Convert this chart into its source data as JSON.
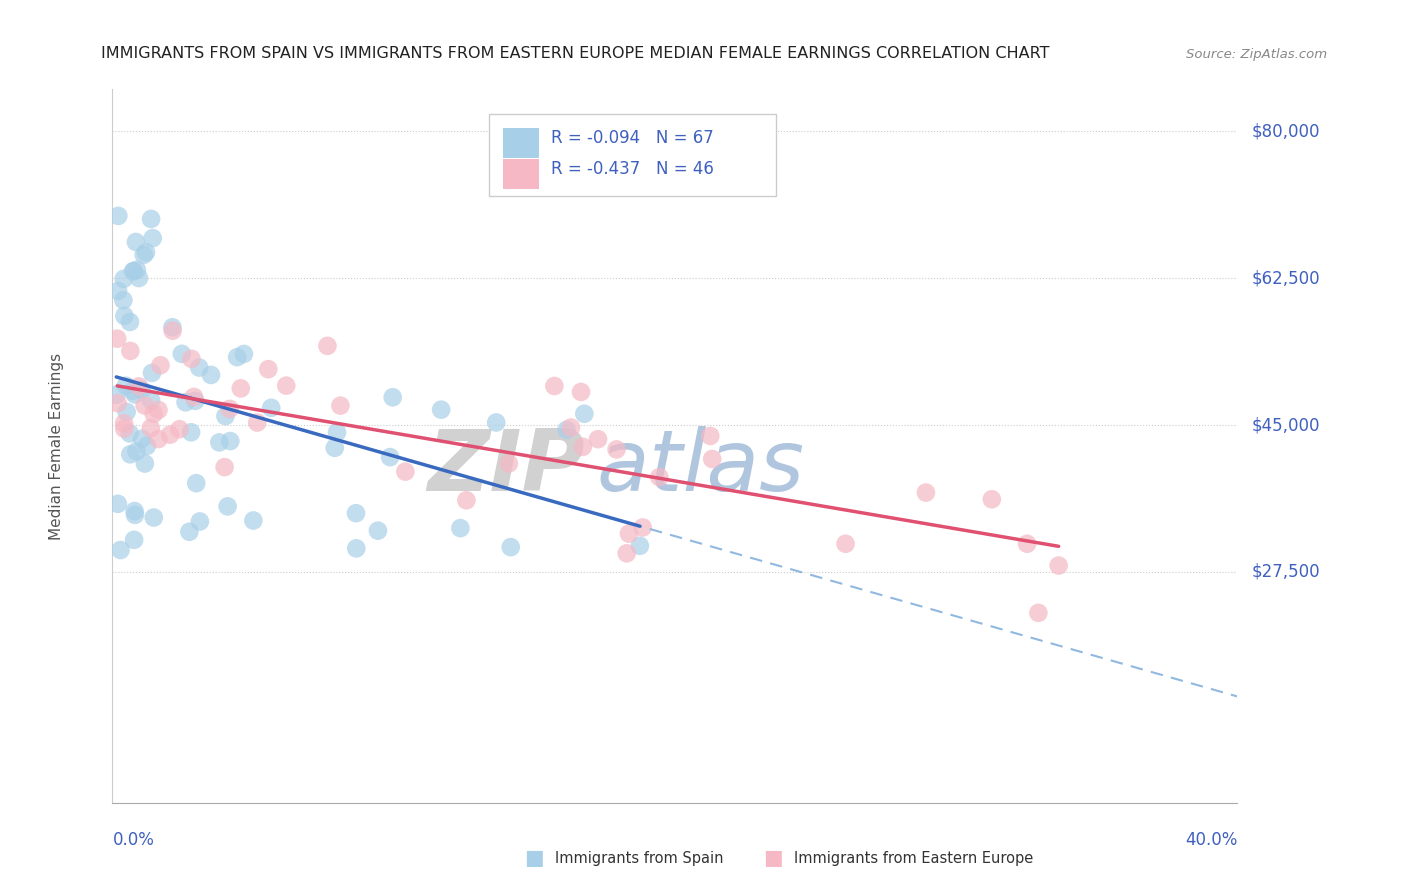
{
  "title": "IMMIGRANTS FROM SPAIN VS IMMIGRANTS FROM EASTERN EUROPE MEDIAN FEMALE EARNINGS CORRELATION CHART",
  "source": "Source: ZipAtlas.com",
  "ylabel": "Median Female Earnings",
  "yticks": [
    0,
    27500,
    45000,
    62500,
    80000
  ],
  "ytick_labels": [
    "",
    "$27,500",
    "$45,000",
    "$62,500",
    "$80,000"
  ],
  "xlim": [
    0.0,
    0.4
  ],
  "ylim": [
    0,
    85000
  ],
  "xtick_left": "0.0%",
  "xtick_right": "40.0%",
  "legend1_R": "-0.094",
  "legend1_N": "67",
  "legend2_R": "-0.437",
  "legend2_N": "46",
  "color_spain": "#a8cfe8",
  "color_eastern": "#f5b8c4",
  "color_spain_line": "#3a6abf",
  "color_eastern_line": "#e05070",
  "color_dashed": "#90b8e0",
  "watermark_ZIP": "#cccccc",
  "watermark_atlas": "#a0b8d8",
  "background_color": "#ffffff",
  "grid_color": "#cccccc",
  "axis_color": "#aaaaaa",
  "label_color": "#4060c0",
  "title_color": "#222222",
  "source_color": "#888888",
  "legend_border": "#cccccc",
  "bottom_legend_spain": "Immigrants from Spain",
  "bottom_legend_eastern": "Immigrants from Eastern Europe"
}
